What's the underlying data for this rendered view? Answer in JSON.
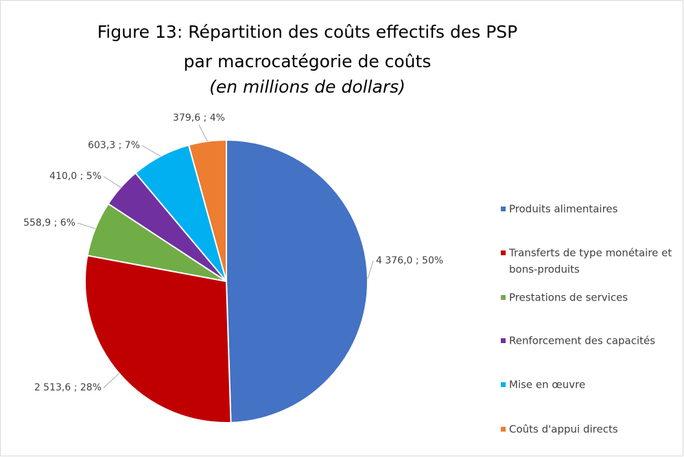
{
  "chart_data": {
    "type": "pie",
    "title": [
      "Figure 13: Répartition des coûts effectifs des PSP",
      "par macrocatégorie de coûts"
    ],
    "subtitle": "(en millions de dollars)",
    "categories": [
      [
        "Produits alimentaires"
      ],
      [
        "Transferts de type monétaire et",
        "bons-produits"
      ],
      [
        "Prestations de services"
      ],
      [
        "Renforcement des capacités"
      ],
      [
        "Mise en œuvre"
      ],
      [
        "Coûts d'appui directs"
      ]
    ],
    "values": [
      4376.0,
      2513.6,
      558.9,
      410.0,
      603.3,
      379.6
    ],
    "value_labels": [
      "4 376,0 ; 50%",
      "2 513,6 ; 28%",
      "558,9 ; 6%",
      "410,0 ; 5%",
      "603,3 ; 7%",
      "379,6 ; 4%"
    ],
    "colors": [
      "#4472c4",
      "#c00000",
      "#70ad47",
      "#7030a0",
      "#00b0f0",
      "#ed7d31"
    ],
    "legend": "right"
  }
}
